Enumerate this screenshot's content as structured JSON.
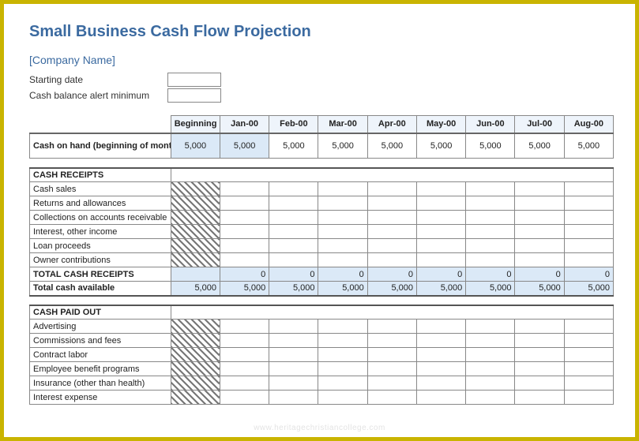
{
  "title": "Small Business Cash Flow Projection",
  "company_placeholder": "[Company Name]",
  "meta": {
    "starting_date_label": "Starting date",
    "alert_min_label": "Cash balance alert minimum"
  },
  "columns": [
    "Beginning",
    "Jan-00",
    "Feb-00",
    "Mar-00",
    "Apr-00",
    "May-00",
    "Jun-00",
    "Jul-00",
    "Aug-00"
  ],
  "cash_on_hand": {
    "label": "Cash on hand (beginning of month)",
    "values": [
      "5,000",
      "5,000",
      "5,000",
      "5,000",
      "5,000",
      "5,000",
      "5,000",
      "5,000",
      "5,000"
    ],
    "highlight_cols": [
      0,
      1
    ]
  },
  "cash_receipts": {
    "section_label": "CASH RECEIPTS",
    "rows": [
      "Cash sales",
      "Returns and allowances",
      "Collections on accounts receivable",
      "Interest, other income",
      "Loan proceeds",
      "Owner contributions"
    ],
    "total_label": "TOTAL CASH RECEIPTS",
    "total_values": [
      "",
      "0",
      "0",
      "0",
      "0",
      "0",
      "0",
      "0",
      "0"
    ],
    "total_avail_label": "Total cash available",
    "total_avail_values": [
      "5,000",
      "5,000",
      "5,000",
      "5,000",
      "5,000",
      "5,000",
      "5,000",
      "5,000",
      "5,000"
    ]
  },
  "cash_paid_out": {
    "section_label": "CASH PAID OUT",
    "rows": [
      "Advertising",
      "Commissions and fees",
      "Contract labor",
      "Employee benefit programs",
      "Insurance (other than health)",
      "Interest expense"
    ]
  },
  "colors": {
    "frame": "#c9b400",
    "heading_text": "#3b6aa0",
    "header_bg": "#eef4fb",
    "highlight_bg": "#dbe9f7",
    "grid": "#888888",
    "hatch_dark": "#777777"
  },
  "watermark": "www.heritagechristiancollege.com"
}
